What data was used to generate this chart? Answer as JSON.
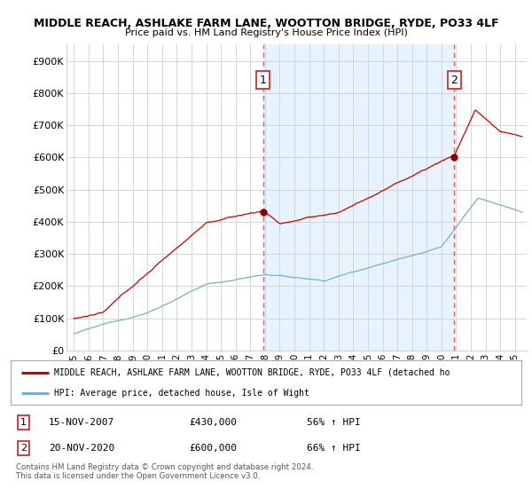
{
  "title": "MIDDLE REACH, ASHLAKE FARM LANE, WOOTTON BRIDGE, RYDE, PO33 4LF",
  "subtitle": "Price paid vs. HM Land Registry's House Price Index (HPI)",
  "ylabel_ticks": [
    "£0",
    "£100K",
    "£200K",
    "£300K",
    "£400K",
    "£500K",
    "£600K",
    "£700K",
    "£800K",
    "£900K"
  ],
  "ytick_values": [
    0,
    100000,
    200000,
    300000,
    400000,
    500000,
    600000,
    700000,
    800000,
    900000
  ],
  "ylim": [
    0,
    950000
  ],
  "xlim_start": 1994.5,
  "xlim_end": 2025.8,
  "sale1_x": 2007.877,
  "sale1_y": 430000,
  "sale1_label": "1",
  "sale2_x": 2020.877,
  "sale2_y": 600000,
  "sale2_label": "2",
  "sale1_date": "15-NOV-2007",
  "sale1_price": "£430,000",
  "sale1_hpi": "56% ↑ HPI",
  "sale2_date": "20-NOV-2020",
  "sale2_price": "£600,000",
  "sale2_hpi": "66% ↑ HPI",
  "legend_line1": "MIDDLE REACH, ASHLAKE FARM LANE, WOOTTON BRIDGE, RYDE, PO33 4LF (detached ho",
  "legend_line2": "HPI: Average price, detached house, Isle of Wight",
  "footnote": "Contains HM Land Registry data © Crown copyright and database right 2024.\nThis data is licensed under the Open Government Licence v3.0.",
  "line_color_red": "#cc0000",
  "line_color_blue": "#7aadcf",
  "background_color": "#ffffff",
  "grid_color": "#d0d0d0",
  "dashed_line_color": "#e06060",
  "shade_color": "#ddeeff"
}
